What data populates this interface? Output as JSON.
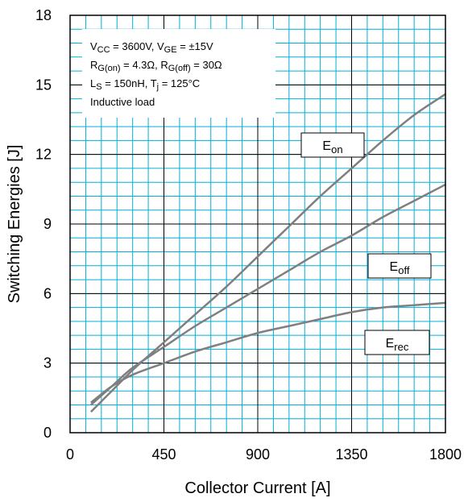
{
  "chart_data": {
    "type": "line",
    "xlabel": "Collector Current [A]",
    "ylabel": "Switching Energies [J]",
    "xlim": [
      0,
      1800
    ],
    "ylim": [
      0,
      18
    ],
    "x_ticks": [
      "0",
      "450",
      "900",
      "1350",
      "1800"
    ],
    "y_ticks": [
      "0",
      "3",
      "6",
      "9",
      "12",
      "15",
      "18"
    ],
    "grid": "major and minor",
    "colors": {
      "grid": "#00b0d8",
      "major_grid": "#000000",
      "series": "#7f7f7f"
    },
    "conditions": [
      {
        "parts": [
          {
            "t": "V"
          },
          {
            "t": "CC",
            "sub": true
          },
          {
            "t": " = 3600V, V"
          },
          {
            "t": "GE",
            "sub": true
          },
          {
            "t": " = ±15V"
          }
        ]
      },
      {
        "parts": [
          {
            "t": "R"
          },
          {
            "t": "G(on)",
            "sub": true
          },
          {
            "t": " = 4.3Ω, R"
          },
          {
            "t": "G(off)",
            "sub": true
          },
          {
            "t": " = 30Ω"
          }
        ]
      },
      {
        "parts": [
          {
            "t": "L"
          },
          {
            "t": "S",
            "sub": true
          },
          {
            "t": " = 150nH, T"
          },
          {
            "t": "j",
            "sub": true
          },
          {
            "t": " = 125°C"
          }
        ]
      },
      {
        "parts": [
          {
            "t": "Inductive load"
          }
        ]
      }
    ],
    "series": [
      {
        "label_main": "E",
        "label_sub": "on",
        "x": [
          100,
          200,
          300,
          450,
          600,
          750,
          900,
          1050,
          1200,
          1350,
          1500,
          1650,
          1800
        ],
        "y": [
          0.9,
          1.8,
          2.7,
          3.9,
          5.1,
          6.3,
          7.6,
          8.9,
          10.2,
          11.4,
          12.6,
          13.7,
          14.6
        ]
      },
      {
        "label_main": "E",
        "label_sub": "off",
        "x": [
          100,
          200,
          300,
          450,
          600,
          750,
          900,
          1050,
          1200,
          1350,
          1500,
          1650,
          1800
        ],
        "y": [
          1.2,
          2.0,
          2.8,
          3.7,
          4.6,
          5.4,
          6.2,
          7.0,
          7.8,
          8.5,
          9.3,
          10.0,
          10.7
        ]
      },
      {
        "label_main": "E",
        "label_sub": "rec",
        "x": [
          100,
          200,
          300,
          450,
          600,
          750,
          900,
          1050,
          1200,
          1350,
          1500,
          1650,
          1800
        ],
        "y": [
          1.3,
          2.0,
          2.5,
          3.0,
          3.5,
          3.9,
          4.3,
          4.6,
          4.9,
          5.2,
          5.4,
          5.5,
          5.6
        ]
      }
    ]
  }
}
